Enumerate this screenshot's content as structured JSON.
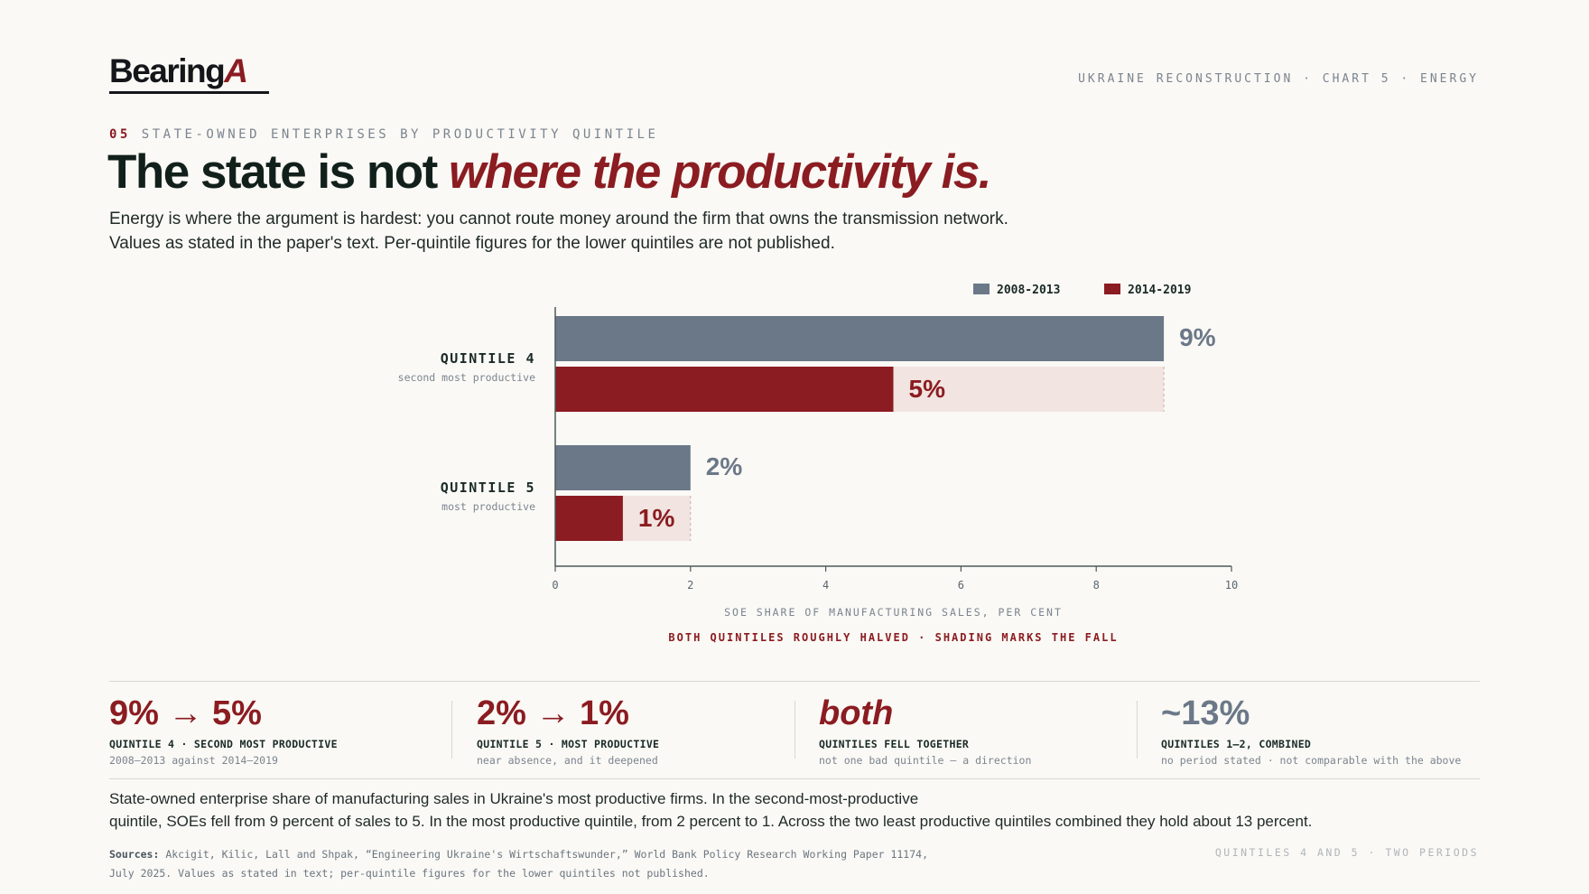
{
  "brand": {
    "name": "Bearing",
    "mark": "A"
  },
  "top_right": "UKRAINE RECONSTRUCTION · CHART 5 · ENERGY",
  "kicker": {
    "number": "05",
    "text": "STATE-OWNED ENTERPRISES BY PRODUCTIVITY QUINTILE"
  },
  "headline": {
    "plain": "The state is not ",
    "emphasis": "where the productivity is."
  },
  "dek": [
    "Energy is where the argument is hardest: you cannot route money around the firm that owns the transmission network.",
    "Values as stated in the paper's text. Per-quintile figures for the lower quintiles are not published."
  ],
  "colors": {
    "period1": "#6b7888",
    "period2": "#8b1c21",
    "fall_shade": "#f1e4e1",
    "axis": "#4a5a58"
  },
  "chart_data": {
    "type": "bar",
    "orientation": "horizontal",
    "categories": [
      {
        "label": "QUINTILE 4",
        "sublabel": "second most productive"
      },
      {
        "label": "QUINTILE 5",
        "sublabel": "most productive"
      }
    ],
    "series": [
      {
        "name": "2008-2013",
        "values": [
          9,
          2
        ],
        "value_labels": [
          "9%",
          "2%"
        ]
      },
      {
        "name": "2014-2019",
        "values": [
          5,
          1
        ],
        "value_labels": [
          "5%",
          "1%"
        ]
      }
    ],
    "xlim": [
      0,
      10
    ],
    "xticks": [
      "0",
      "2",
      "4",
      "6",
      "8",
      "10"
    ],
    "xlabel": "SOE SHARE OF MANUFACTURING SALES, PER CENT",
    "annotation": "BOTH QUINTILES ROUGHLY HALVED · SHADING MARKS THE FALL",
    "legend_position": "top-right"
  },
  "stats": [
    {
      "value": "9% → 5%",
      "label": "QUINTILE 4 · SECOND MOST PRODUCTIVE",
      "sub": "2008–2013 against 2014–2019"
    },
    {
      "value": "2% → 1%",
      "label": "QUINTILE 5 · MOST PRODUCTIVE",
      "sub": "near absence, and it deepened"
    },
    {
      "value": "both",
      "label": "QUINTILES FELL TOGETHER",
      "sub": "not one bad quintile — a direction"
    },
    {
      "value": "~13%",
      "label": "QUINTILES 1–2, COMBINED",
      "sub": "no period stated · not comparable with the above"
    }
  ],
  "summary": [
    "State-owned enterprise share of manufacturing sales in Ukraine's most productive firms. In the second-most-productive",
    "quintile, SOEs fell from 9 percent of sales to 5. In the most productive quintile, from 2 percent to 1. Across the two least productive quintiles combined they hold about 13 percent."
  ],
  "sources": {
    "label": "Sources:",
    "line1": "Akcigit, Kilic, Lall and Shpak, “Engineering Ukraine's Wirtschaftswunder,” World Bank Policy Research Working Paper 11174,",
    "line2": "July 2025. Values as stated in text; per-quintile figures for the lower quintiles not published."
  },
  "footer_right": "QUINTILES 4 AND 5 · TWO PERIODS"
}
